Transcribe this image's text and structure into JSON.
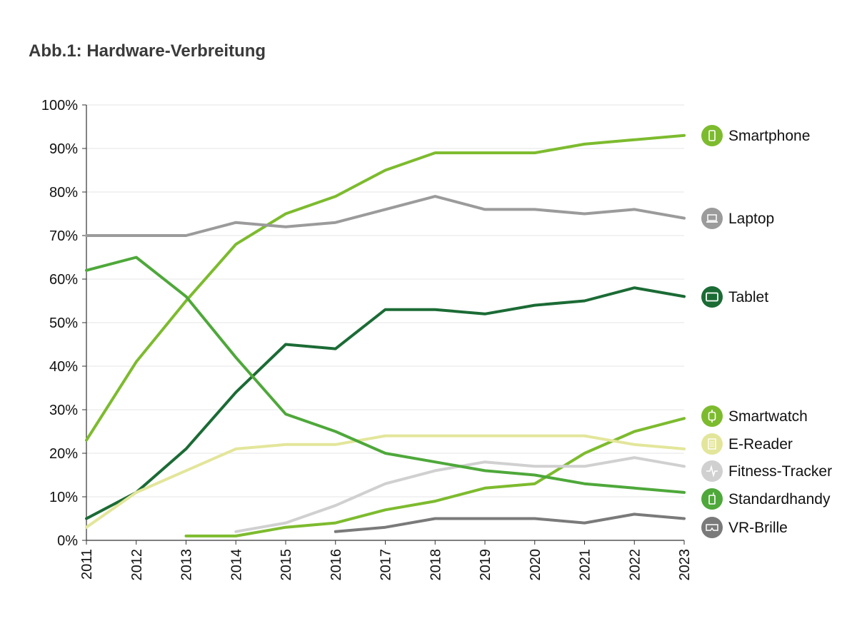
{
  "chart_data": {
    "type": "line",
    "title": "Abb.1: Hardware-Verbreitung",
    "xlabel": "",
    "ylabel": "",
    "ylim": [
      0,
      100
    ],
    "y_ticks": [
      "0%",
      "10%",
      "20%",
      "30%",
      "40%",
      "50%",
      "60%",
      "70%",
      "80%",
      "90%",
      "100%"
    ],
    "categories": [
      "2011",
      "2012",
      "2013",
      "2014",
      "2015",
      "2016",
      "2017",
      "2018",
      "2019",
      "2020",
      "2021",
      "2022",
      "2023"
    ],
    "grid": true,
    "legend_position": "right",
    "series": [
      {
        "name": "Smartphone",
        "color": "#7dbb2e",
        "icon": "smartphone-icon",
        "values": [
          23,
          41,
          55,
          68,
          75,
          79,
          85,
          89,
          89,
          89,
          91,
          92,
          93
        ]
      },
      {
        "name": "Laptop",
        "color": "#9b9b9b",
        "icon": "laptop-icon",
        "values": [
          70,
          70,
          70,
          73,
          72,
          73,
          76,
          79,
          76,
          76,
          75,
          76,
          74
        ]
      },
      {
        "name": "Tablet",
        "color": "#1b6b35",
        "icon": "tablet-icon",
        "values": [
          5,
          11,
          21,
          34,
          45,
          44,
          53,
          53,
          52,
          54,
          55,
          58,
          56
        ]
      },
      {
        "name": "Smartwatch",
        "color": "#7dbb2e",
        "icon": "smartwatch-icon",
        "values": [
          null,
          null,
          1,
          1,
          3,
          4,
          7,
          9,
          12,
          13,
          20,
          25,
          28
        ]
      },
      {
        "name": "E-Reader",
        "color": "#e3e69a",
        "icon": "e-reader-icon",
        "values": [
          3,
          11,
          16,
          21,
          22,
          22,
          24,
          24,
          24,
          24,
          24,
          22,
          21
        ]
      },
      {
        "name": "Fitness-Tracker",
        "color": "#d0d0d0",
        "icon": "fitness-tracker-icon",
        "values": [
          null,
          null,
          null,
          2,
          4,
          8,
          13,
          16,
          18,
          17,
          17,
          19,
          17
        ]
      },
      {
        "name": "Standardhandy",
        "color": "#4ea83a",
        "icon": "standardhandy-icon",
        "values": [
          62,
          65,
          56,
          42,
          29,
          25,
          20,
          18,
          16,
          15,
          13,
          12,
          11
        ]
      },
      {
        "name": "VR-Brille",
        "color": "#7a7a7a",
        "icon": "vr-brille-icon",
        "values": [
          null,
          null,
          null,
          null,
          null,
          2,
          3,
          5,
          5,
          5,
          4,
          6,
          5
        ]
      }
    ]
  }
}
